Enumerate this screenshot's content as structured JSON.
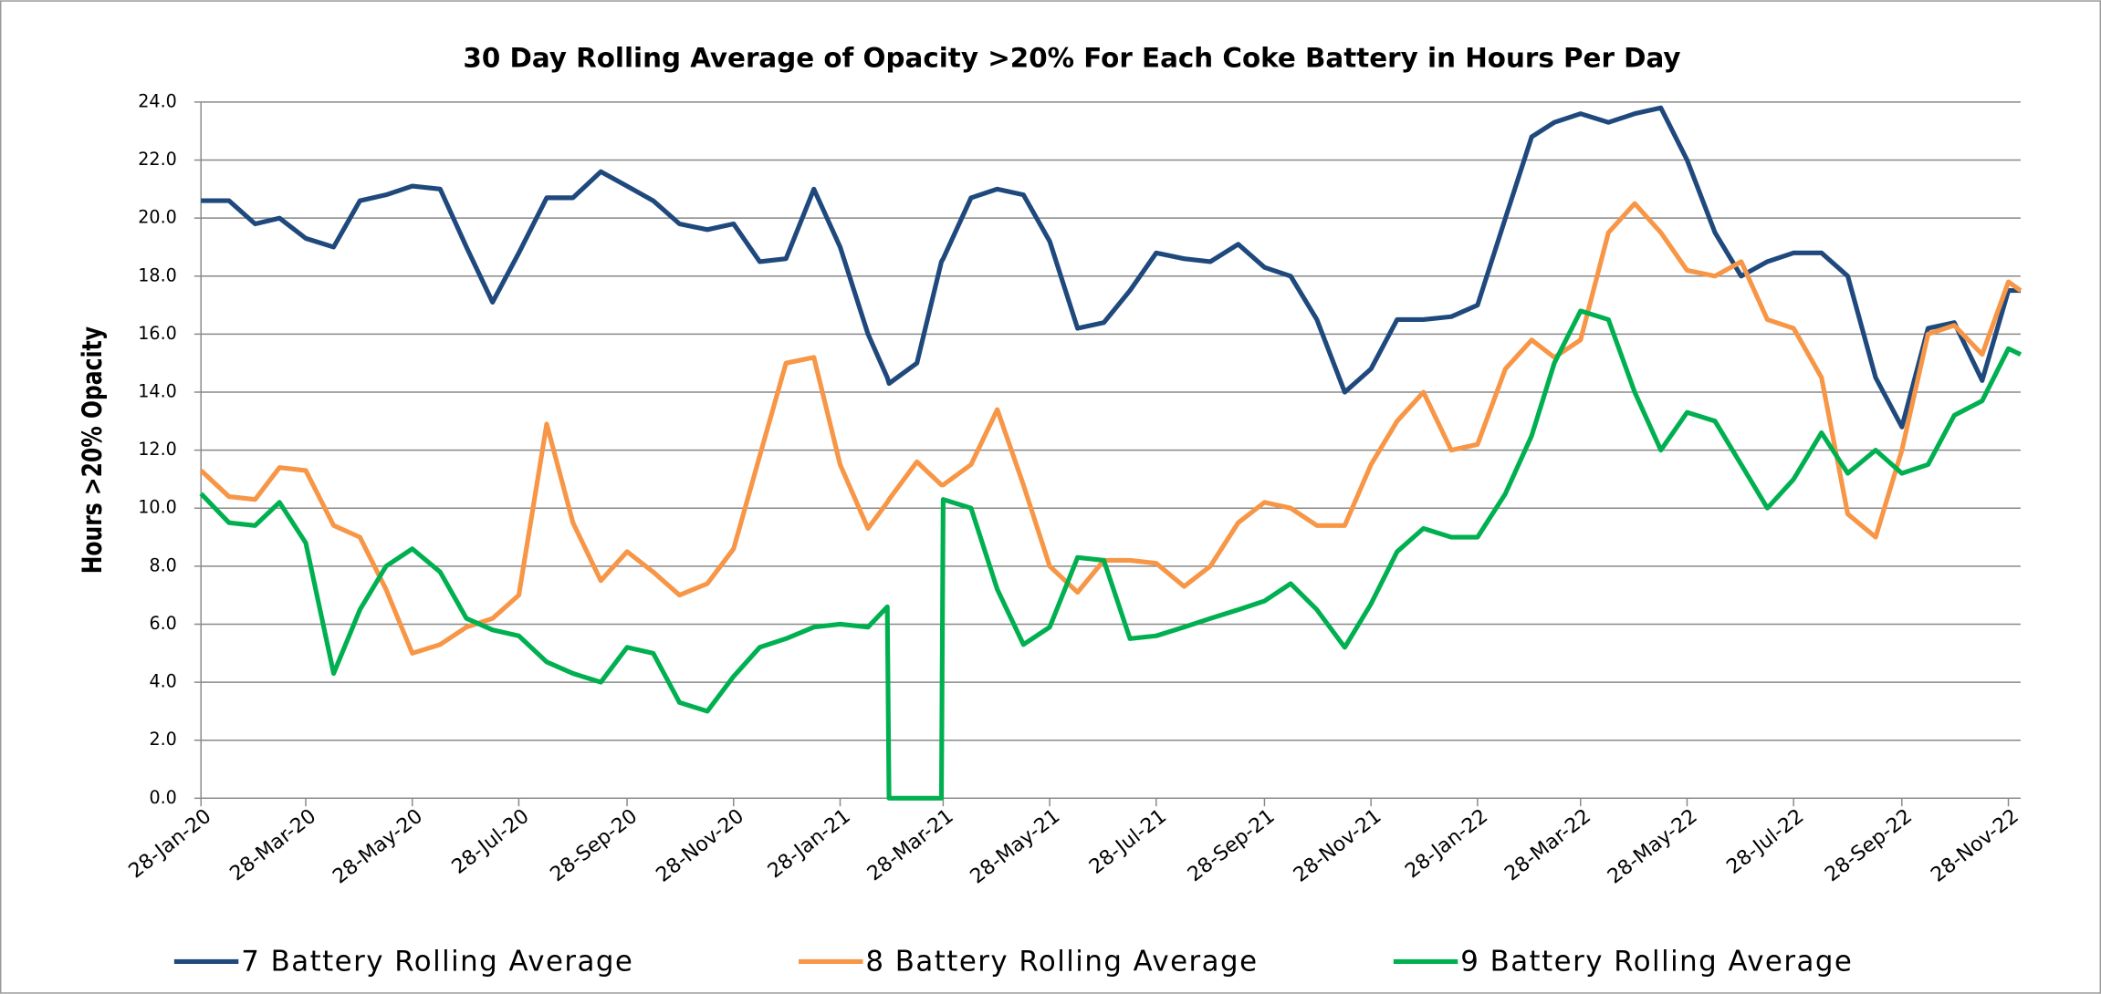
{
  "chart_data": {
    "type": "line",
    "title": "30 Day Rolling Average of Opacity >20% For Each Coke Battery in Hours Per Day",
    "y_label": "Hours >20% Opacity",
    "x": [
      "2020-01-28",
      "2020-02-13",
      "2020-02-28",
      "2020-03-13",
      "2020-03-28",
      "2020-04-13",
      "2020-04-28",
      "2020-05-13",
      "2020-05-28",
      "2020-06-13",
      "2020-06-28",
      "2020-07-13",
      "2020-07-28",
      "2020-08-13",
      "2020-08-28",
      "2020-09-13",
      "2020-09-28",
      "2020-10-13",
      "2020-10-28",
      "2020-11-13",
      "2020-11-28",
      "2020-12-13",
      "2020-12-28",
      "2021-01-13",
      "2021-01-28",
      "2021-02-13",
      "2021-02-24",
      "2021-02-25",
      "2021-03-13",
      "2021-03-27",
      "2021-03-28",
      "2021-04-13",
      "2021-04-28",
      "2021-05-13",
      "2021-05-28",
      "2021-06-13",
      "2021-06-28",
      "2021-07-13",
      "2021-07-28",
      "2021-08-13",
      "2021-08-28",
      "2021-09-13",
      "2021-09-28",
      "2021-10-13",
      "2021-10-28",
      "2021-11-13",
      "2021-11-28",
      "2021-12-13",
      "2021-12-28",
      "2022-01-13",
      "2022-01-28",
      "2022-02-13",
      "2022-02-28",
      "2022-03-13",
      "2022-03-28",
      "2022-04-13",
      "2022-04-28",
      "2022-05-13",
      "2022-05-28",
      "2022-06-13",
      "2022-06-28",
      "2022-07-13",
      "2022-07-28",
      "2022-08-13",
      "2022-08-28",
      "2022-09-13",
      "2022-09-28",
      "2022-10-13",
      "2022-10-28",
      "2022-11-13",
      "2022-11-28",
      "2022-12-05"
    ],
    "series": [
      {
        "name": "7 Battery Rolling Average",
        "color": "#1f497d",
        "values": [
          20.6,
          20.6,
          19.8,
          20.0,
          19.3,
          19.0,
          20.6,
          20.8,
          21.1,
          21.0,
          19.0,
          17.1,
          18.8,
          20.7,
          20.7,
          21.6,
          21.1,
          20.6,
          19.8,
          19.6,
          19.8,
          18.5,
          18.6,
          21.0,
          19.0,
          16.0,
          14.5,
          14.3,
          15.0,
          18.5,
          18.6,
          20.7,
          21.0,
          20.8,
          19.2,
          16.2,
          16.4,
          17.5,
          18.8,
          18.6,
          18.5,
          19.1,
          18.3,
          18.0,
          16.5,
          14.0,
          14.8,
          16.5,
          16.5,
          16.6,
          17.0,
          20.0,
          22.8,
          23.3,
          23.6,
          23.3,
          23.6,
          23.8,
          22.0,
          19.5,
          18.0,
          18.5,
          18.8,
          18.8,
          18.0,
          14.5,
          12.8,
          16.2,
          16.4,
          14.4,
          17.5,
          17.5
        ]
      },
      {
        "name": "8 Battery Rolling Average",
        "color": "#f79646",
        "values": [
          11.3,
          10.4,
          10.3,
          11.4,
          11.3,
          9.4,
          9.0,
          7.2,
          5.0,
          5.3,
          5.9,
          6.2,
          7.0,
          12.9,
          9.5,
          7.5,
          8.5,
          7.8,
          7.0,
          7.4,
          8.6,
          11.8,
          15.0,
          15.2,
          11.5,
          9.3,
          10.2,
          10.3,
          11.6,
          10.8,
          10.8,
          11.5,
          13.4,
          10.8,
          8.0,
          7.1,
          8.2,
          8.2,
          8.1,
          7.3,
          8.0,
          9.5,
          10.2,
          10.0,
          9.4,
          9.4,
          11.5,
          13.0,
          14.0,
          12.0,
          12.2,
          14.8,
          15.8,
          15.2,
          15.8,
          19.5,
          20.5,
          19.5,
          18.2,
          18.0,
          18.5,
          16.5,
          16.2,
          14.5,
          9.8,
          9.0,
          12.0,
          16.0,
          16.3,
          15.3,
          17.8,
          17.5
        ]
      },
      {
        "name": "9 Battery  Rolling Average",
        "color": "#00b050",
        "values": [
          10.5,
          9.5,
          9.4,
          10.2,
          8.8,
          4.3,
          6.5,
          8.0,
          8.6,
          7.8,
          6.2,
          5.8,
          5.6,
          4.7,
          4.3,
          4.0,
          5.2,
          5.0,
          3.3,
          3.0,
          4.2,
          5.2,
          5.5,
          5.9,
          6.0,
          5.9,
          6.6,
          0,
          0,
          0,
          10.3,
          10.0,
          7.2,
          5.3,
          5.9,
          8.3,
          8.2,
          5.5,
          5.6,
          5.9,
          6.2,
          6.5,
          6.8,
          7.4,
          6.5,
          5.2,
          6.7,
          8.5,
          9.3,
          9.0,
          9.0,
          10.5,
          12.5,
          15.0,
          16.8,
          16.5,
          14.0,
          12.0,
          13.3,
          13.0,
          11.5,
          10.0,
          11.0,
          12.6,
          11.2,
          12.0,
          11.2,
          11.5,
          13.2,
          13.7,
          15.5,
          15.3
        ]
      }
    ],
    "xlim": [
      "2020-01-28",
      "2022-12-05"
    ],
    "xticks": [
      {
        "value": "2020-01-28",
        "label": "28-Jan-20"
      },
      {
        "value": "2020-03-28",
        "label": "28-Mar-20"
      },
      {
        "value": "2020-05-28",
        "label": "28-May-20"
      },
      {
        "value": "2020-07-28",
        "label": "28-Jul-20"
      },
      {
        "value": "2020-09-28",
        "label": "28-Sep-20"
      },
      {
        "value": "2020-11-28",
        "label": "28-Nov-20"
      },
      {
        "value": "2021-01-28",
        "label": "28-Jan-21"
      },
      {
        "value": "2021-03-28",
        "label": "28-Mar-21"
      },
      {
        "value": "2021-05-28",
        "label": "28-May-21"
      },
      {
        "value": "2021-07-28",
        "label": "28-Jul-21"
      },
      {
        "value": "2021-09-28",
        "label": "28-Sep-21"
      },
      {
        "value": "2021-11-28",
        "label": "28-Nov-21"
      },
      {
        "value": "2022-01-28",
        "label": "28-Jan-22"
      },
      {
        "value": "2022-03-28",
        "label": "28-Mar-22"
      },
      {
        "value": "2022-05-28",
        "label": "28-May-22"
      },
      {
        "value": "2022-07-28",
        "label": "28-Jul-22"
      },
      {
        "value": "2022-09-28",
        "label": "28-Sep-22"
      },
      {
        "value": "2022-11-28",
        "label": "28-Nov-22"
      }
    ],
    "ylim": [
      0,
      24
    ],
    "yticks": [
      {
        "value": 0,
        "label": "0.0"
      },
      {
        "value": 2,
        "label": "2.0"
      },
      {
        "value": 4,
        "label": "4.0"
      },
      {
        "value": 6,
        "label": "6.0"
      },
      {
        "value": 8,
        "label": "8.0"
      },
      {
        "value": 10,
        "label": "10.0"
      },
      {
        "value": 12,
        "label": "12.0"
      },
      {
        "value": 14,
        "label": "14.0"
      },
      {
        "value": 16,
        "label": "16.0"
      },
      {
        "value": 18,
        "label": "18.0"
      },
      {
        "value": 20,
        "label": "20.0"
      },
      {
        "value": 22,
        "label": "22.0"
      },
      {
        "value": 24,
        "label": "24.0"
      }
    ],
    "grid": true,
    "legend": "bottom"
  }
}
